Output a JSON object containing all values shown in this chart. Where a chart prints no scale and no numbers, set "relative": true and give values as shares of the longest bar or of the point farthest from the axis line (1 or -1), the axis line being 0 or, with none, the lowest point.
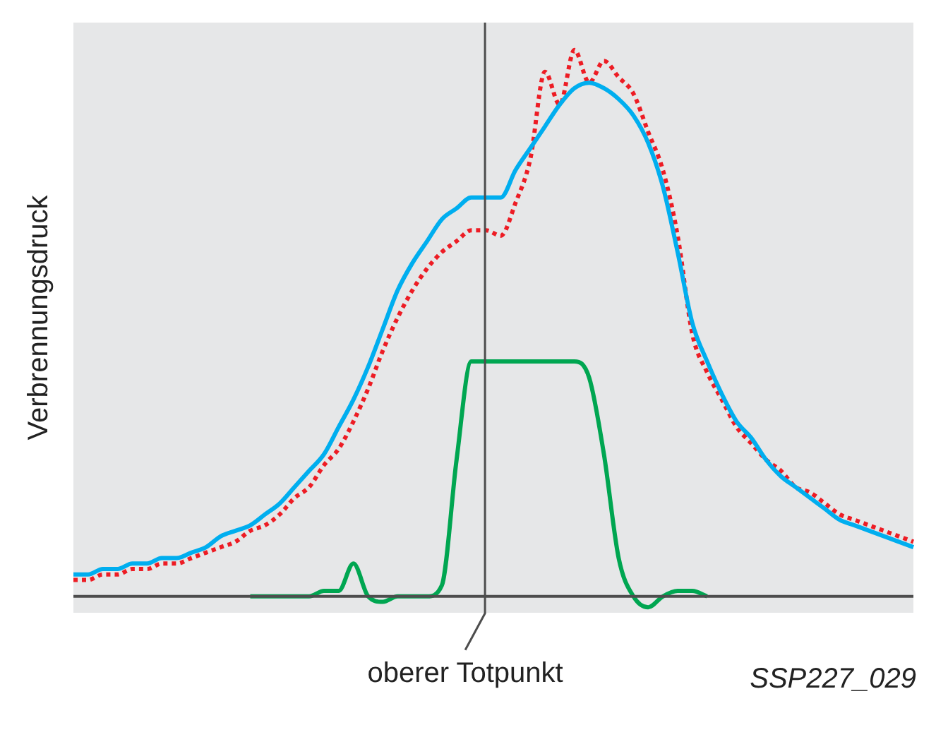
{
  "chart_data": {
    "type": "line",
    "relative": true,
    "ylabel": "Verbrennungsdruck",
    "categories": [
      null,
      null,
      null,
      null,
      null,
      null,
      null,
      null,
      null,
      null,
      null,
      null,
      null,
      null,
      null,
      null,
      null,
      null,
      null,
      null,
      null,
      null,
      null,
      null,
      null,
      null,
      null,
      null,
      null,
      null,
      null,
      null,
      null,
      null,
      null,
      null,
      null,
      null,
      null,
      null,
      null,
      null,
      null,
      null,
      null,
      null,
      null,
      null,
      null,
      null,
      null,
      null,
      null,
      null,
      null,
      null,
      null,
      null
    ],
    "series": [
      {
        "color": "#00aeef",
        "line_style": "solid",
        "values": [
          0.04,
          0.04,
          0.05,
          0.05,
          0.06,
          0.06,
          0.07,
          0.07,
          0.08,
          0.09,
          0.11,
          0.12,
          0.13,
          0.15,
          0.17,
          0.2,
          0.23,
          0.26,
          0.31,
          0.36,
          0.42,
          0.49,
          0.56,
          0.61,
          0.65,
          0.69,
          0.71,
          0.73,
          0.73,
          0.73,
          0.78,
          0.82,
          0.86,
          0.9,
          0.93,
          0.94,
          0.93,
          0.91,
          0.88,
          0.83,
          0.75,
          0.63,
          0.5,
          0.43,
          0.37,
          0.32,
          0.29,
          0.25,
          0.22,
          0.2,
          0.18,
          0.16,
          0.14,
          0.13,
          0.12,
          0.11,
          0.1,
          0.09
        ]
      },
      {
        "color": "#ed1c24",
        "line_style": "dotted",
        "values": [
          0.03,
          0.03,
          0.04,
          0.04,
          0.05,
          0.05,
          0.06,
          0.06,
          0.07,
          0.08,
          0.09,
          0.1,
          0.12,
          0.13,
          0.15,
          0.18,
          0.2,
          0.24,
          0.27,
          0.32,
          0.38,
          0.45,
          0.51,
          0.56,
          0.6,
          0.63,
          0.65,
          0.67,
          0.67,
          0.66,
          0.72,
          0.8,
          0.96,
          0.9,
          1.0,
          0.94,
          0.98,
          0.95,
          0.92,
          0.85,
          0.78,
          0.66,
          0.48,
          0.41,
          0.36,
          0.31,
          0.28,
          0.25,
          0.23,
          0.2,
          0.19,
          0.17,
          0.15,
          0.14,
          0.13,
          0.12,
          0.11,
          0.1
        ]
      },
      {
        "color": "#00a651",
        "line_style": "solid",
        "values": [
          null,
          null,
          null,
          null,
          null,
          null,
          null,
          null,
          null,
          null,
          null,
          null,
          0,
          0,
          0,
          0,
          0,
          0.01,
          0.01,
          0.06,
          0,
          -0.01,
          0,
          0,
          0,
          0.02,
          0.25,
          0.43,
          0.43,
          0.43,
          0.43,
          0.43,
          0.43,
          0.43,
          0.43,
          0.4,
          0.26,
          0.07,
          0,
          -0.02,
          0,
          0.01,
          0.01,
          0,
          null,
          null,
          null,
          null,
          null,
          null,
          null,
          null,
          null,
          null,
          null,
          null,
          null,
          null
        ]
      }
    ],
    "annotations": [
      "oberer Totpunkt",
      "SSP227_029"
    ]
  }
}
